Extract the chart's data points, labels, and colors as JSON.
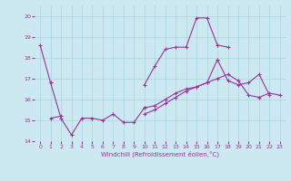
{
  "xlabel": "Windchill (Refroidissement éolien,°C)",
  "bg_color": "#cce8f0",
  "grid_color": "#aad4de",
  "line_color": "#993399",
  "xlim": [
    -0.5,
    23.5
  ],
  "ylim": [
    14.0,
    20.5
  ],
  "yticks": [
    14,
    15,
    16,
    17,
    18,
    19,
    20
  ],
  "xticks": [
    0,
    1,
    2,
    3,
    4,
    5,
    6,
    7,
    8,
    9,
    10,
    11,
    12,
    13,
    14,
    15,
    16,
    17,
    18,
    19,
    20,
    21,
    22,
    23
  ],
  "series": [
    [
      18.6,
      16.8,
      null,
      null,
      null,
      null,
      null,
      null,
      null,
      null,
      null,
      null,
      null,
      null,
      null,
      null,
      null,
      null,
      null,
      null,
      null,
      null,
      null,
      null
    ],
    [
      null,
      16.8,
      15.1,
      14.3,
      15.1,
      15.1,
      15.0,
      15.3,
      14.9,
      14.9,
      15.6,
      null,
      null,
      null,
      null,
      null,
      null,
      null,
      null,
      null,
      null,
      null,
      null,
      null
    ],
    [
      null,
      null,
      null,
      null,
      null,
      null,
      null,
      null,
      null,
      null,
      16.7,
      17.6,
      18.4,
      18.5,
      18.5,
      19.9,
      19.9,
      18.6,
      18.5,
      null,
      null,
      null,
      null,
      null
    ],
    [
      null,
      15.1,
      15.2,
      null,
      null,
      null,
      null,
      null,
      null,
      null,
      15.3,
      15.5,
      15.8,
      16.1,
      16.4,
      16.6,
      16.8,
      17.0,
      17.2,
      16.9,
      16.2,
      16.1,
      16.3,
      16.2
    ],
    [
      null,
      null,
      null,
      null,
      null,
      null,
      null,
      null,
      null,
      null,
      15.6,
      15.7,
      16.0,
      16.3,
      16.5,
      16.6,
      16.8,
      17.9,
      16.9,
      16.7,
      16.8,
      17.2,
      16.2,
      null
    ]
  ]
}
